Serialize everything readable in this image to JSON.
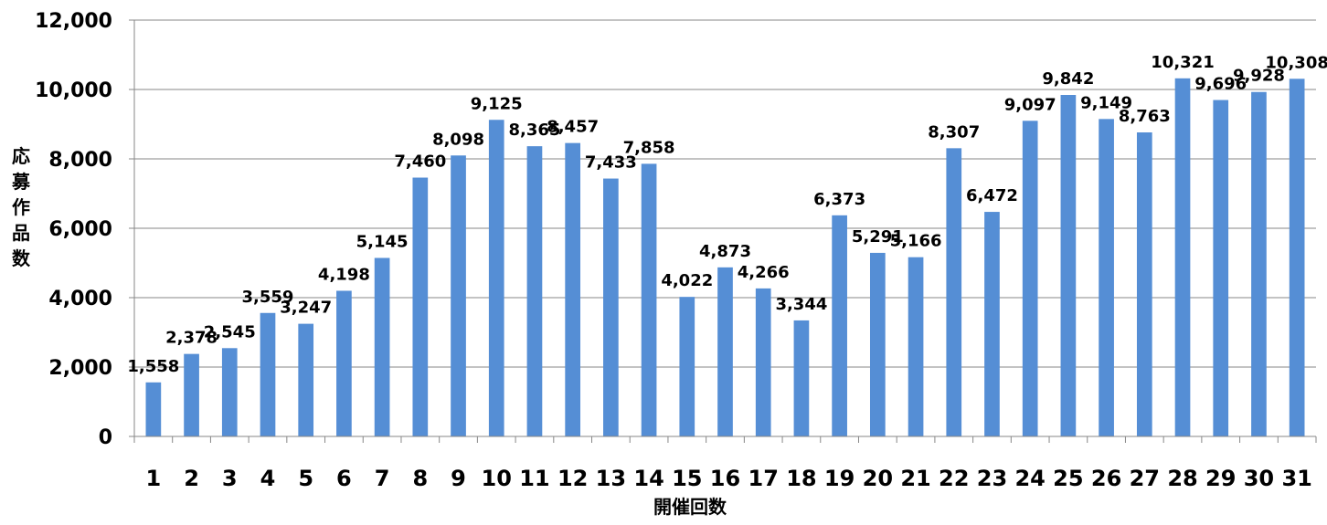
{
  "chart_data": {
    "type": "bar",
    "categories": [
      "1",
      "2",
      "3",
      "4",
      "5",
      "6",
      "7",
      "8",
      "9",
      "10",
      "11",
      "12",
      "13",
      "14",
      "15",
      "16",
      "17",
      "18",
      "19",
      "20",
      "21",
      "22",
      "23",
      "24",
      "25",
      "26",
      "27",
      "28",
      "29",
      "30",
      "31"
    ],
    "values": [
      1558,
      2378,
      2545,
      3559,
      3247,
      4198,
      5145,
      7460,
      8098,
      9125,
      8365,
      8457,
      7433,
      7858,
      4022,
      4873,
      4266,
      3344,
      6373,
      5291,
      5166,
      8307,
      6472,
      9097,
      9842,
      9149,
      8763,
      10321,
      9696,
      9928,
      10308
    ],
    "data_labels": [
      "1,558",
      "2,378",
      "2,545",
      "3,559",
      "3,247",
      "4,198",
      "5,145",
      "7,460",
      "8,098",
      "9,125",
      "8,365",
      "8,457",
      "7,433",
      "7,858",
      "4,022",
      "4,873",
      "4,266",
      "3,344",
      "6,373",
      "5,291",
      "5,166",
      "8,307",
      "6,472",
      "9,097",
      "9,842",
      "9,149",
      "8,763",
      "10,321",
      "9,696",
      "9,928",
      "10,308"
    ],
    "y_ticks": [
      "0",
      "2,000",
      "4,000",
      "6,000",
      "8,000",
      "10,000",
      "12,000"
    ],
    "y_tick_values": [
      0,
      2000,
      4000,
      6000,
      8000,
      10000,
      12000
    ],
    "xlabel": "開催回数",
    "ylabel": "応募作品数",
    "ylim": [
      0,
      12000
    ],
    "grid": true,
    "bar_color": "#558ED5"
  }
}
